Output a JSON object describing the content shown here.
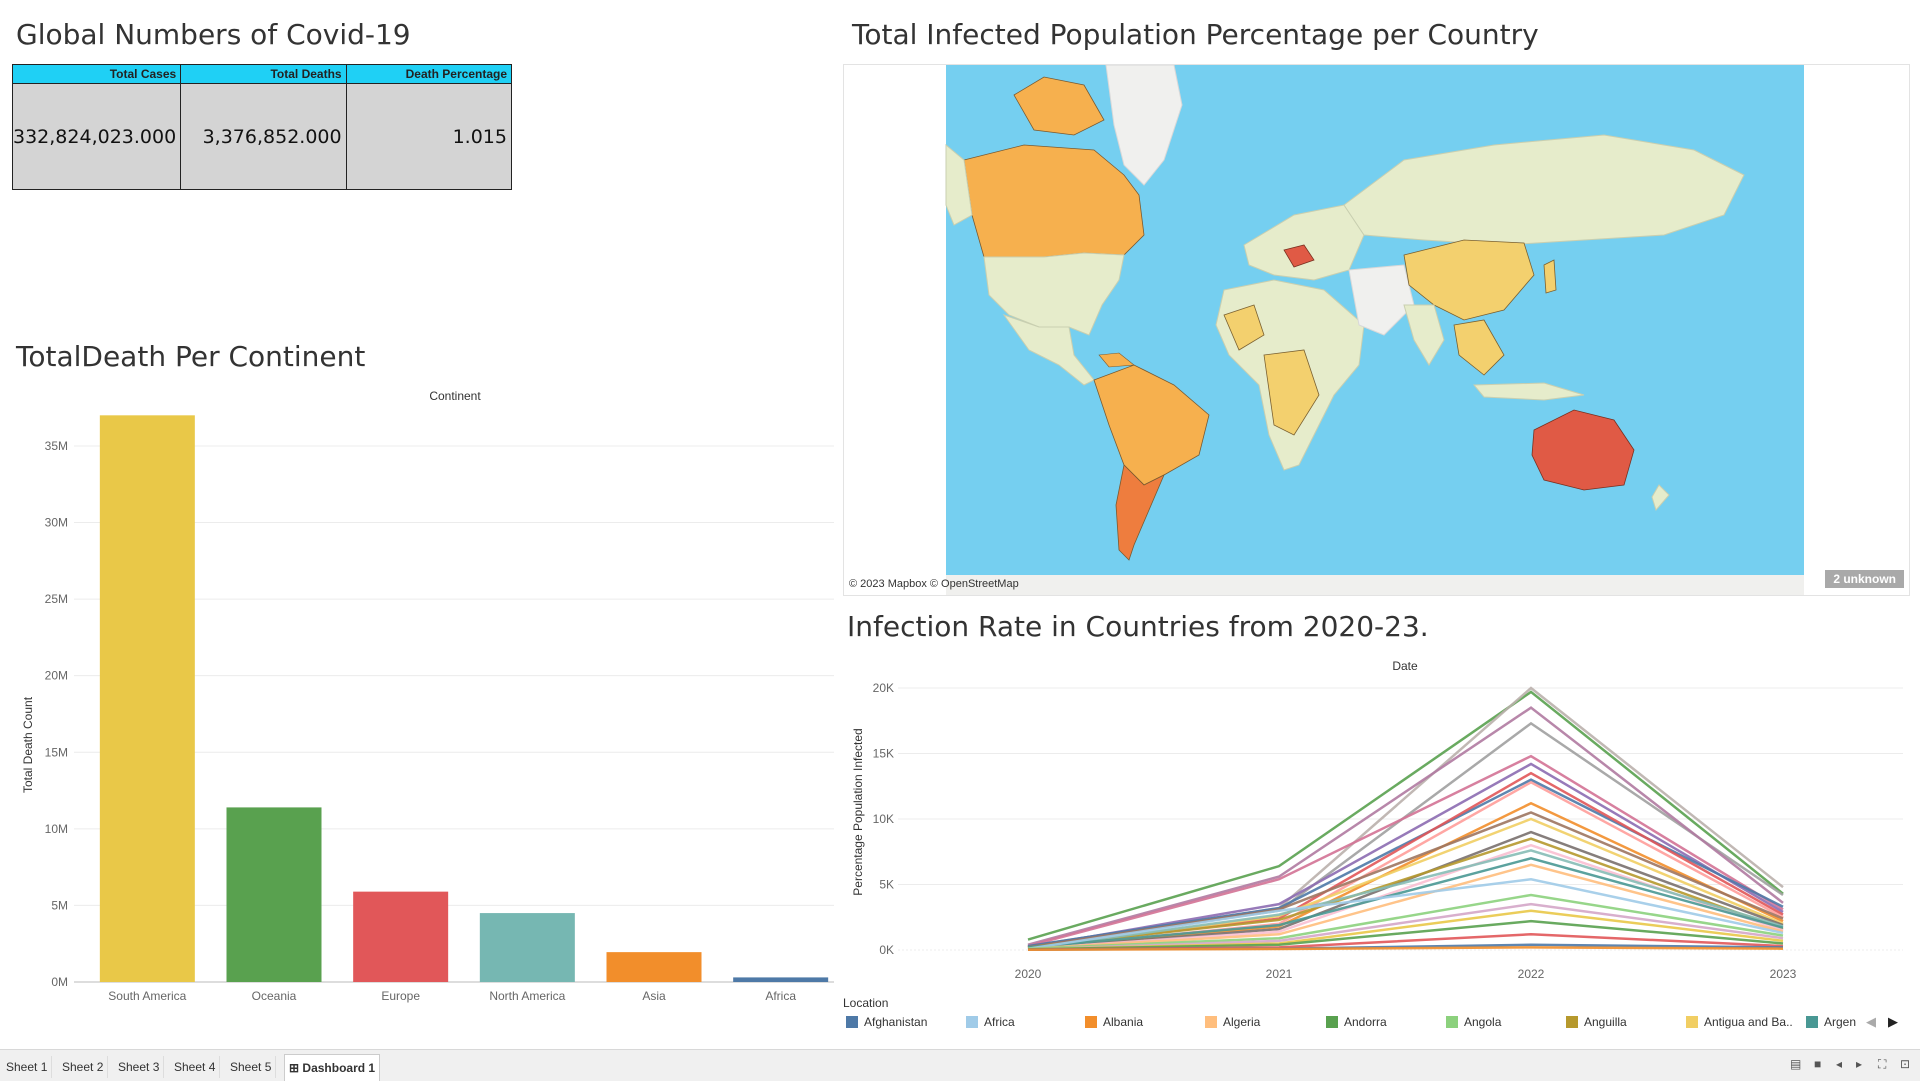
{
  "global": {
    "title": "Global Numbers of Covid-19",
    "headers": [
      "Total Cases",
      "Total Deaths",
      "Death Percentage"
    ],
    "values": [
      "332,824,023.000",
      "3,376,852.000",
      "1.015"
    ]
  },
  "continent_chart": {
    "title": "TotalDeath Per Continent",
    "header": "Continent",
    "ylabel": "Total Death Count"
  },
  "map": {
    "title": "Total Infected Population Percentage per Country",
    "credit": "© 2023 Mapbox © OpenStreetMap",
    "unknown_badge": "2 unknown",
    "colors": {
      "ocean": "#75cff0",
      "land": "#e6eccb",
      "ice": "#f0f0ee",
      "low": "#f3d06e",
      "mid": "#f6b04e",
      "high": "#ee7d3e",
      "top": "#e05a45"
    }
  },
  "line_chart": {
    "title": "Infection Rate in Countries from 2020-23.",
    "header": "Date",
    "ylabel": "Percentage Population Infected"
  },
  "legend": {
    "title": "Location",
    "items": [
      {
        "label": "Afghanistan",
        "color": "#4e79a7"
      },
      {
        "label": "Africa",
        "color": "#a0cbe8"
      },
      {
        "label": "Albania",
        "color": "#f28e2b"
      },
      {
        "label": "Algeria",
        "color": "#ffbe7d"
      },
      {
        "label": "Andorra",
        "color": "#59a14f"
      },
      {
        "label": "Angola",
        "color": "#8cd17d"
      },
      {
        "label": "Anguilla",
        "color": "#b6992d"
      },
      {
        "label": "Antigua and Ba..",
        "color": "#f1ce63"
      },
      {
        "label": "Argen",
        "color": "#499894"
      }
    ]
  },
  "tabs": [
    "Sheet 1",
    "Sheet 2",
    "Sheet 3",
    "Sheet 4",
    "Sheet 5",
    "Dashboard 1"
  ],
  "chart_data": [
    {
      "type": "bar",
      "title": "TotalDeath Per Continent",
      "xlabel": "Continent",
      "ylabel": "Total Death Count",
      "categories": [
        "South America",
        "Oceania",
        "Europe",
        "North America",
        "Asia",
        "Africa"
      ],
      "values": [
        37000000,
        11400000,
        5900000,
        4500000,
        1950000,
        300000
      ],
      "colors": [
        "#e9c848",
        "#59a14f",
        "#e15759",
        "#76b7b2",
        "#f28e2b",
        "#4e79a7"
      ],
      "yticks": [
        0,
        5,
        10,
        15,
        20,
        25,
        30,
        35
      ],
      "ytick_labels": [
        "0M",
        "5M",
        "10M",
        "15M",
        "20M",
        "25M",
        "30M",
        "35M"
      ],
      "ylim": [
        0,
        38000000
      ],
      "grid": true
    },
    {
      "type": "line",
      "title": "Infection Rate in Countries from 2020-23.",
      "xlabel": "Date",
      "ylabel": "Percentage Population Infected",
      "x": [
        "2020",
        "2021",
        "2022",
        "2023"
      ],
      "ylim": [
        0,
        20000
      ],
      "yticks": [
        0,
        5000,
        10000,
        15000,
        20000
      ],
      "ytick_labels": [
        "0K",
        "5K",
        "10K",
        "15K",
        "20K"
      ],
      "series": [
        {
          "color": "#59a14f",
          "values": [
            800,
            6400,
            19700,
            4300
          ]
        },
        {
          "color": "#bab0ac",
          "values": [
            300,
            3200,
            20000,
            4800
          ]
        },
        {
          "color": "#a0a0a0",
          "values": [
            300,
            3000,
            17300,
            4200
          ]
        },
        {
          "color": "#b07aa1",
          "values": [
            400,
            5600,
            18500,
            3600
          ]
        },
        {
          "color": "#d37295",
          "values": [
            300,
            5400,
            14800,
            3100
          ]
        },
        {
          "color": "#8c6bb1",
          "values": [
            200,
            3500,
            14200,
            2900
          ]
        },
        {
          "color": "#4e79a7",
          "values": [
            300,
            3200,
            13000,
            3300
          ]
        },
        {
          "color": "#e15759",
          "values": [
            200,
            2400,
            13500,
            2700
          ]
        },
        {
          "color": "#ff9d9a",
          "values": [
            100,
            2000,
            12800,
            2500
          ]
        },
        {
          "color": "#f28e2b",
          "values": [
            100,
            1800,
            11200,
            2200
          ]
        },
        {
          "color": "#f1ce63",
          "values": [
            100,
            2600,
            10000,
            2000
          ]
        },
        {
          "color": "#9d7660",
          "values": [
            200,
            3100,
            10500,
            2400
          ]
        },
        {
          "color": "#79706e",
          "values": [
            100,
            1600,
            9000,
            1900
          ]
        },
        {
          "color": "#b6992d",
          "values": [
            200,
            2300,
            8500,
            1600
          ]
        },
        {
          "color": "#fabfd2",
          "values": [
            100,
            1400,
            8000,
            1500
          ]
        },
        {
          "color": "#86bcb6",
          "values": [
            100,
            2700,
            7600,
            1800
          ]
        },
        {
          "color": "#499894",
          "values": [
            200,
            1900,
            7000,
            1700
          ]
        },
        {
          "color": "#ffbe7d",
          "values": [
            100,
            1200,
            6500,
            1400
          ]
        },
        {
          "color": "#a0cbe8",
          "values": [
            100,
            3000,
            5400,
            1300
          ]
        },
        {
          "color": "#8cd17d",
          "values": [
            100,
            900,
            4200,
            1100
          ]
        },
        {
          "color": "#d4a6c8",
          "values": [
            50,
            700,
            3500,
            900
          ]
        },
        {
          "color": "#e9c848",
          "values": [
            50,
            500,
            3000,
            700
          ]
        },
        {
          "color": "#59a14f",
          "values": [
            50,
            400,
            2200,
            500
          ]
        },
        {
          "color": "#e15759",
          "values": [
            30,
            200,
            1200,
            300
          ]
        },
        {
          "color": "#4e79a7",
          "values": [
            30,
            100,
            400,
            200
          ]
        },
        {
          "color": "#f28e2b",
          "values": [
            20,
            80,
            200,
            100
          ]
        }
      ],
      "grid": true,
      "legend": "bottom"
    }
  ]
}
